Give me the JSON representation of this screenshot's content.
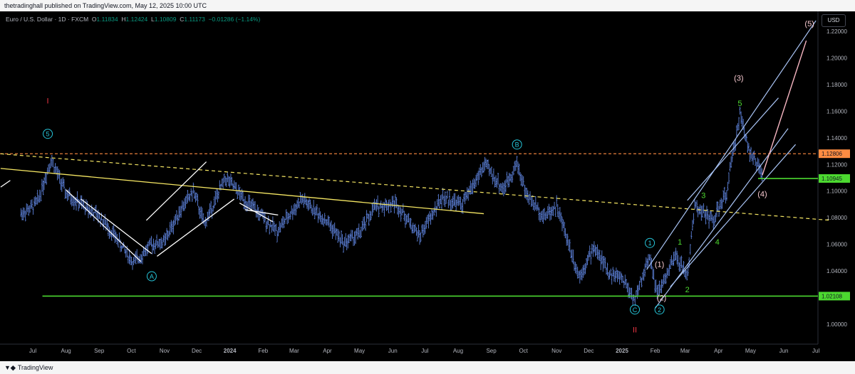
{
  "header": {
    "published_text": "thetradinghall published on TradingView.com, May 12, 2025 10:00 UTC"
  },
  "legend": {
    "symbol": "Euro / U.S. Dollar · 1D · FXCM",
    "o_label": "O",
    "o_value": "1.11834",
    "h_label": "H",
    "h_value": "1.12424",
    "l_label": "L",
    "l_value": "1.10809",
    "c_label": "C",
    "c_value": "1.11173",
    "change": "−0.01286 (−1.14%)"
  },
  "currency": "USD",
  "footer": {
    "brand": "TradingView"
  },
  "colors": {
    "bars": "#5b7fd6",
    "axis_text": "#b2b5be",
    "green_line": "#4cd930",
    "orange_line": "#ff8c42",
    "yellow_line": "#f5e663",
    "channel": "#a9c4f5",
    "pink": "#f7b6c2",
    "cyan_label": "#26c6da",
    "green_label": "#4cd930",
    "red_label": "#f23645",
    "peach_label": "#f7c9d0"
  },
  "chart_data": {
    "type": "bar",
    "x_ticks": [
      "Jul",
      "Aug",
      "Sep",
      "Oct",
      "Nov",
      "Dec",
      "2024",
      "Feb",
      "Mar",
      "Apr",
      "May",
      "Jun",
      "Jul",
      "Aug",
      "Sep",
      "Oct",
      "Nov",
      "Dec",
      "2025",
      "Feb",
      "Mar",
      "Apr",
      "May",
      "Jun",
      "Jul"
    ],
    "y_ticks": [
      1.0,
      1.02,
      1.04,
      1.06,
      1.08,
      1.1,
      1.12,
      1.14,
      1.16,
      1.18,
      1.2,
      1.22
    ],
    "y_tick_labels": [
      "1.00000",
      "1.02000",
      "1.04000",
      "1.06000",
      "1.08000",
      "1.10000",
      "1.12000",
      "1.14000",
      "1.16000",
      "1.18000",
      "1.20000",
      "1.22000"
    ],
    "ylim": [
      0.985,
      1.235
    ],
    "price_path": [
      [
        "2023-06-20",
        1.083
      ],
      [
        "2023-07-01",
        1.088
      ],
      [
        "2023-07-06",
        1.093
      ],
      [
        "2023-07-18",
        1.124
      ],
      [
        "2023-08-01",
        1.098
      ],
      [
        "2023-08-15",
        1.09
      ],
      [
        "2023-09-01",
        1.081
      ],
      [
        "2023-09-15",
        1.067
      ],
      [
        "2023-10-03",
        1.046
      ],
      [
        "2023-10-20",
        1.06
      ],
      [
        "2023-11-01",
        1.062
      ],
      [
        "2023-11-15",
        1.085
      ],
      [
        "2023-11-28",
        1.1
      ],
      [
        "2023-12-08",
        1.075
      ],
      [
        "2023-12-28",
        1.11
      ],
      [
        "2024-01-15",
        1.093
      ],
      [
        "2024-02-14",
        1.07
      ],
      [
        "2024-03-08",
        1.094
      ],
      [
        "2024-04-01",
        1.077
      ],
      [
        "2024-04-16",
        1.061
      ],
      [
        "2024-05-01",
        1.068
      ],
      [
        "2024-05-15",
        1.088
      ],
      [
        "2024-06-04",
        1.091
      ],
      [
        "2024-06-26",
        1.066
      ],
      [
        "2024-07-17",
        1.095
      ],
      [
        "2024-08-05",
        1.09
      ],
      [
        "2024-08-26",
        1.12
      ],
      [
        "2024-09-12",
        1.101
      ],
      [
        "2024-09-25",
        1.121
      ],
      [
        "2024-10-04",
        1.097
      ],
      [
        "2024-10-20",
        1.081
      ],
      [
        "2024-11-01",
        1.089
      ],
      [
        "2024-11-22",
        1.036
      ],
      [
        "2024-12-06",
        1.058
      ],
      [
        "2024-12-20",
        1.038
      ],
      [
        "2025-01-01",
        1.035
      ],
      [
        "2025-01-13",
        1.018
      ],
      [
        "2025-01-27",
        1.052
      ],
      [
        "2025-02-03",
        1.022
      ],
      [
        "2025-02-20",
        1.051
      ],
      [
        "2025-03-03",
        1.036
      ],
      [
        "2025-03-10",
        1.09
      ],
      [
        "2025-03-20",
        1.082
      ],
      [
        "2025-03-27",
        1.078
      ],
      [
        "2025-04-08",
        1.097
      ],
      [
        "2025-04-21",
        1.158
      ],
      [
        "2025-05-01",
        1.128
      ],
      [
        "2025-05-12",
        1.112
      ]
    ],
    "horizontal_lines": [
      {
        "price": 1.12806,
        "label": "1.12806",
        "style": "dashed-orange"
      },
      {
        "price": 1.10945,
        "label": "1.10945",
        "style": "solid-green"
      },
      {
        "price": 1.02108,
        "label": "1.02108",
        "style": "solid-green"
      }
    ],
    "wave_labels": [
      {
        "text": "I",
        "date": "2023-07-15",
        "price": 1.168,
        "color": "red"
      },
      {
        "text": "5",
        "date": "2023-07-15",
        "price": 1.143,
        "circled": true,
        "color": "cyan"
      },
      {
        "text": "A",
        "date": "2023-10-20",
        "price": 1.036,
        "circled": true,
        "color": "cyan"
      },
      {
        "text": "B",
        "date": "2024-09-25",
        "price": 1.135,
        "circled": true,
        "color": "cyan"
      },
      {
        "text": "C",
        "date": "2025-01-13",
        "price": 1.011,
        "circled": true,
        "color": "cyan"
      },
      {
        "text": "II",
        "date": "2025-01-13",
        "price": 0.996,
        "color": "red"
      },
      {
        "text": "1",
        "date": "2025-01-27",
        "price": 1.061,
        "circled": true,
        "color": "cyan"
      },
      {
        "text": "2",
        "date": "2025-02-05",
        "price": 1.011,
        "circled": true,
        "color": "cyan"
      },
      {
        "text": "(1)",
        "date": "2025-02-05",
        "price": 1.045,
        "color": "peach"
      },
      {
        "text": "(2)",
        "date": "2025-02-07",
        "price": 1.02,
        "color": "peach"
      },
      {
        "text": "1",
        "date": "2025-02-24",
        "price": 1.062,
        "color": "green"
      },
      {
        "text": "2",
        "date": "2025-03-03",
        "price": 1.026,
        "color": "green"
      },
      {
        "text": "3",
        "date": "2025-03-18",
        "price": 1.097,
        "color": "green"
      },
      {
        "text": "4",
        "date": "2025-03-31",
        "price": 1.062,
        "color": "green"
      },
      {
        "text": "5",
        "date": "2025-04-21",
        "price": 1.166,
        "color": "green"
      },
      {
        "text": "(3)",
        "date": "2025-04-20",
        "price": 1.185,
        "color": "peach"
      },
      {
        "text": "(4)",
        "date": "2025-05-12",
        "price": 1.098,
        "color": "peach"
      },
      {
        "text": "(5)",
        "date": "2025-06-25",
        "price": 1.226,
        "color": "peach"
      }
    ]
  }
}
